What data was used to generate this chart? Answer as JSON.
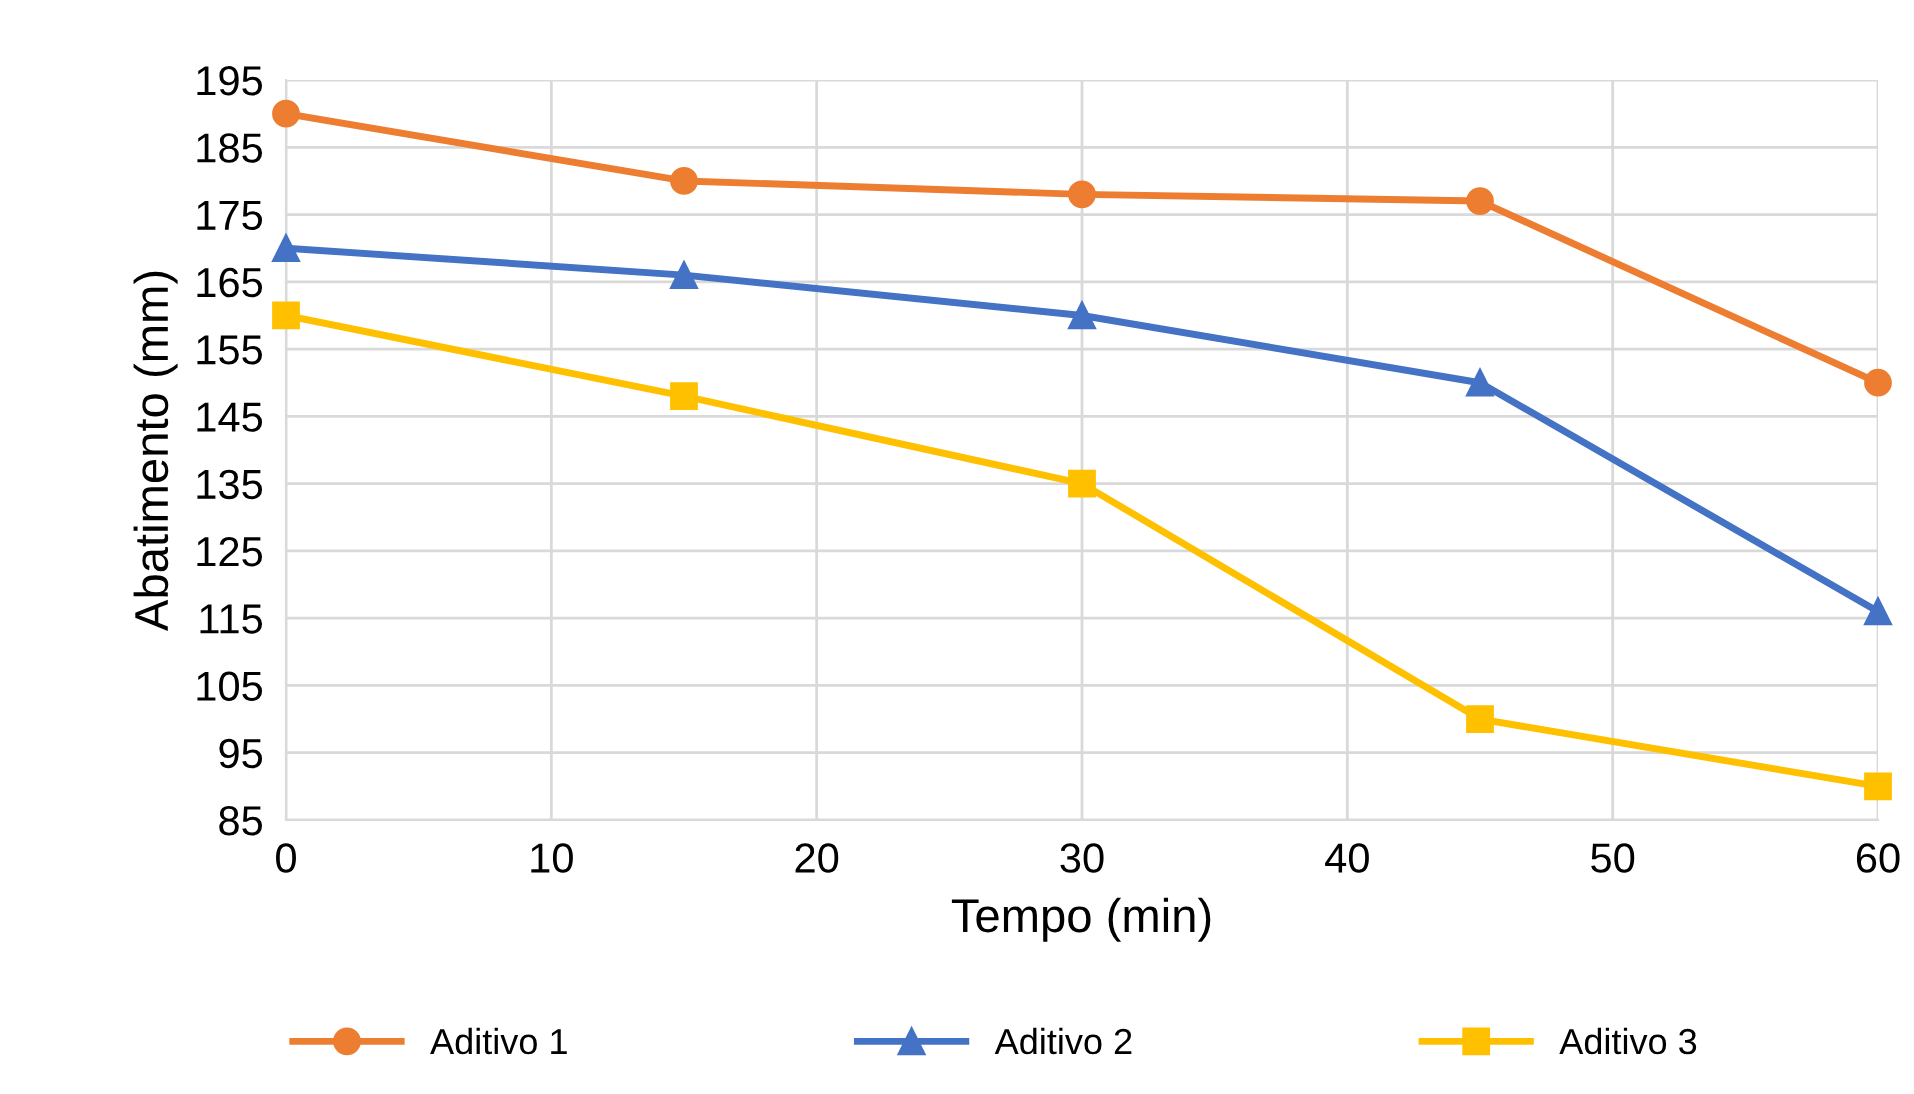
{
  "chart_data": {
    "type": "line",
    "xlabel": "Tempo (min)",
    "ylabel": "Abatimento (mm)",
    "x": [
      0,
      15,
      30,
      45,
      60
    ],
    "series": [
      {
        "name": "Aditivo 1",
        "color": "#ed7d31",
        "marker": "circle",
        "values": [
          190,
          180,
          178,
          177,
          150
        ]
      },
      {
        "name": "Aditivo 2",
        "color": "#4472c4",
        "marker": "triangle",
        "values": [
          170,
          166,
          160,
          150,
          116
        ]
      },
      {
        "name": "Aditivo 3",
        "color": "#ffc000",
        "marker": "square",
        "values": [
          160,
          148,
          135,
          100,
          90
        ]
      }
    ],
    "xlim": [
      0,
      60
    ],
    "xticks": [
      0,
      10,
      20,
      30,
      40,
      50,
      60
    ],
    "ylim": [
      85,
      195
    ],
    "yticks": [
      85,
      95,
      105,
      115,
      125,
      135,
      145,
      155,
      165,
      175,
      185,
      195
    ],
    "grid": true,
    "legend": "bottom",
    "line_style": "solid"
  }
}
